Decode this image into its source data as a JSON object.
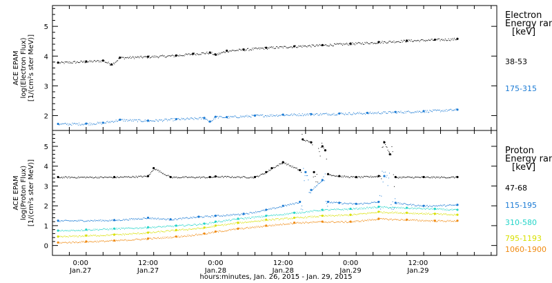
{
  "xlabel": "hours:minutes, Jan. 26, 2015 - Jan. 29, 2015",
  "x_ticks": [
    {
      "time": "0:00",
      "date": "Jan.27",
      "hours": 24
    },
    {
      "time": "12:00",
      "date": "Jan.27",
      "hours": 36
    },
    {
      "time": "0:00",
      "date": "Jan.28",
      "hours": 48
    },
    {
      "time": "12:00",
      "date": "Jan.28",
      "hours": 60
    },
    {
      "time": "0:00",
      "date": "Jan.29",
      "hours": 72
    },
    {
      "time": "12:00",
      "date": "Jan.29",
      "hours": 84
    }
  ],
  "xlim_hours_from_jan26": [
    19,
    98
  ],
  "chart_data": [
    {
      "type": "scatter",
      "panel": "electron",
      "ylabel_lines": [
        "ACE EPAM",
        "log(Electron Flux)",
        "[1/(cm²s ster MeV)]"
      ],
      "ylim": [
        1.5,
        5.7
      ],
      "yticks": [
        2,
        3,
        4,
        5
      ],
      "legend_title_lines": [
        "Electron",
        "Energy range",
        "[keV]"
      ],
      "series": [
        {
          "name": "38-53",
          "color": "#000000",
          "x": [
            20,
            25,
            28,
            29.5,
            31,
            36,
            41,
            44,
            47,
            48,
            50,
            53,
            57,
            62,
            67,
            72,
            77,
            82,
            87,
            91
          ],
          "y": [
            3.78,
            3.82,
            3.85,
            3.72,
            3.95,
            3.98,
            4.02,
            4.08,
            4.12,
            4.05,
            4.18,
            4.22,
            4.28,
            4.33,
            4.37,
            4.42,
            4.47,
            4.52,
            4.55,
            4.58
          ]
        },
        {
          "name": "175-315",
          "color": "#1a7ad4",
          "x": [
            20,
            25,
            28,
            31,
            36,
            41,
            46,
            47,
            48,
            50,
            55,
            60,
            65,
            70,
            75,
            80,
            85,
            91
          ],
          "y": [
            1.72,
            1.73,
            1.76,
            1.86,
            1.83,
            1.88,
            1.92,
            1.8,
            1.96,
            1.95,
            2.0,
            2.03,
            2.05,
            2.07,
            2.09,
            2.12,
            2.15,
            2.2
          ]
        }
      ]
    },
    {
      "type": "scatter",
      "panel": "proton",
      "ylabel_lines": [
        "ACE EPAM",
        "log(Proton Flux)",
        "[1/(cm²s ster MeV)]"
      ],
      "ylim": [
        -0.5,
        5.8
      ],
      "yticks": [
        0,
        1,
        2,
        3,
        4,
        5
      ],
      "legend_title_lines": [
        "Proton",
        "Energy range",
        "[keV]"
      ],
      "series": [
        {
          "name": "47-68",
          "color": "#000000",
          "x": [
            20,
            30,
            36,
            37,
            40,
            47,
            48,
            55,
            57,
            58,
            60,
            63,
            63.5,
            65,
            65.5,
            67,
            67.5,
            68,
            70,
            73,
            77,
            78,
            79,
            80,
            85,
            91
          ],
          "y": [
            3.45,
            3.45,
            3.5,
            3.9,
            3.45,
            3.45,
            3.48,
            3.45,
            3.7,
            3.9,
            4.2,
            3.8,
            5.35,
            5.2,
            3.7,
            5.0,
            4.8,
            3.6,
            3.5,
            3.45,
            3.5,
            5.2,
            4.6,
            3.45,
            3.45,
            3.45
          ]
        },
        {
          "name": "115-195",
          "color": "#1a7ad4",
          "x": [
            20,
            30,
            36,
            40,
            45,
            48,
            53,
            57,
            60,
            63,
            64,
            65,
            67,
            68,
            70,
            73,
            77,
            78,
            80,
            85,
            91
          ],
          "y": [
            1.25,
            1.28,
            1.4,
            1.32,
            1.45,
            1.5,
            1.6,
            1.8,
            2.0,
            2.2,
            3.7,
            2.8,
            3.3,
            2.2,
            2.15,
            2.1,
            2.2,
            3.5,
            2.15,
            2.0,
            2.05
          ]
        },
        {
          "name": "310-580",
          "color": "#22d4c8",
          "x": [
            20,
            25,
            30,
            36,
            41,
            46,
            48,
            52,
            57,
            62,
            67,
            72,
            77,
            82,
            87,
            91
          ],
          "y": [
            0.75,
            0.8,
            0.85,
            0.92,
            1.0,
            1.1,
            1.2,
            1.35,
            1.5,
            1.65,
            1.8,
            1.85,
            1.95,
            1.9,
            1.85,
            1.8
          ]
        },
        {
          "name": "795-1193",
          "color": "#d8e000",
          "x": [
            20,
            25,
            30,
            36,
            41,
            46,
            48,
            52,
            57,
            62,
            67,
            72,
            77,
            82,
            87,
            91
          ],
          "y": [
            0.45,
            0.5,
            0.55,
            0.65,
            0.78,
            0.9,
            1.0,
            1.15,
            1.3,
            1.4,
            1.5,
            1.55,
            1.7,
            1.65,
            1.6,
            1.55
          ]
        },
        {
          "name": "1060-1900",
          "color": "#f08a10",
          "x": [
            20,
            25,
            30,
            36,
            41,
            46,
            48,
            52,
            57,
            62,
            67,
            72,
            77,
            82,
            87,
            91
          ],
          "y": [
            0.15,
            0.2,
            0.25,
            0.35,
            0.45,
            0.6,
            0.7,
            0.85,
            1.0,
            1.15,
            1.2,
            1.2,
            1.35,
            1.3,
            1.25,
            1.25
          ]
        }
      ]
    }
  ]
}
